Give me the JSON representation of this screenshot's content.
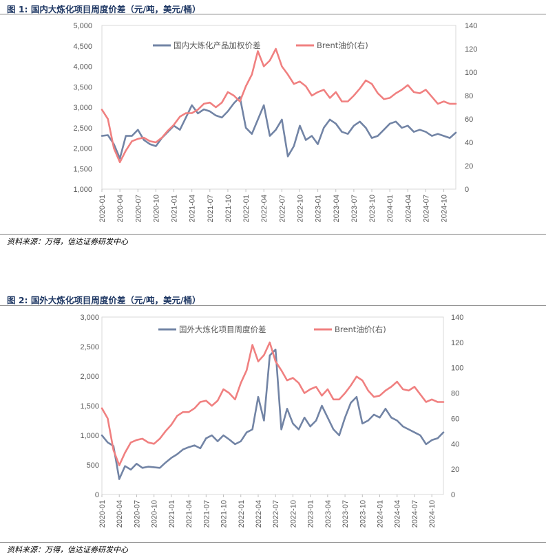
{
  "colors": {
    "domestic": "#7284a5",
    "foreign": "#7284a5",
    "brent": "#f08080",
    "title": "#1f3864"
  },
  "charts": [
    {
      "figure_title": "图 1:  国内大炼化项目周度价差（元/吨，美元/桶）",
      "source": "资料来源：万得，信达证券研发中心",
      "left_ticks": [
        "1,000",
        "1,500",
        "2,000",
        "2,500",
        "3,000",
        "3,500",
        "4,000",
        "4,500",
        "5,000"
      ],
      "right_ticks": [
        "0",
        "20",
        "40",
        "60",
        "80",
        "100",
        "120",
        "140"
      ],
      "x_ticks": [
        "2020-01",
        "2020-04",
        "2020-07",
        "2020-10",
        "2021-01",
        "2021-04",
        "2021-07",
        "2021-10",
        "2022-01",
        "2022-04",
        "2022-07",
        "2022-10",
        "2023-01",
        "2023-04",
        "2023-07",
        "2023-10",
        "2024-01",
        "2024-04",
        "2024-07",
        "2024-10"
      ],
      "legend": [
        "国内大炼化产品加权价差",
        "Brent油价(右)"
      ]
    },
    {
      "figure_title": "图 2:  国外大炼化项目周度价差（元/吨，美元/桶）",
      "source": "资料来源：万得，信达证券研发中心",
      "left_ticks": [
        "0",
        "500",
        "1,000",
        "1,500",
        "2,000",
        "2,500",
        "3,000"
      ],
      "right_ticks": [
        "0",
        "20",
        "40",
        "60",
        "80",
        "100",
        "120",
        "140"
      ],
      "x_ticks": [
        "2020-01",
        "2020-04",
        "2020-07",
        "2020-10",
        "2021-01",
        "2021-04",
        "2021-07",
        "2021-10",
        "2022-01",
        "2022-04",
        "2022-07",
        "2022-10",
        "2023-01",
        "2023-04",
        "2023-07",
        "2023-10",
        "2024-01",
        "2024-04",
        "2024-07",
        "2024-10"
      ],
      "legend": [
        "国外大炼化项目周度价差",
        "Brent油价(右)"
      ]
    }
  ],
  "chart_data": [
    {
      "type": "line",
      "title": "国内大炼化项目周度价差（元/吨，美元/桶）",
      "xlabel": "",
      "ylabel": "",
      "ylabel_right": "",
      "ylim": [
        1000,
        5000
      ],
      "ylim_right": [
        0,
        140
      ],
      "x_range": [
        "2020-01",
        "2024-12"
      ],
      "legend_position": "top-center",
      "series": [
        {
          "name": "国内大炼化产品加权价差",
          "axis": "left",
          "x": [
            "2020-01",
            "2020-02",
            "2020-03",
            "2020-04",
            "2020-05",
            "2020-06",
            "2020-07",
            "2020-08",
            "2020-09",
            "2020-10",
            "2020-11",
            "2020-12",
            "2021-01",
            "2021-02",
            "2021-03",
            "2021-04",
            "2021-05",
            "2021-06",
            "2021-07",
            "2021-08",
            "2021-09",
            "2021-10",
            "2021-11",
            "2021-12",
            "2022-01",
            "2022-02",
            "2022-03",
            "2022-04",
            "2022-05",
            "2022-06",
            "2022-07",
            "2022-08",
            "2022-09",
            "2022-10",
            "2022-11",
            "2022-12",
            "2023-01",
            "2023-02",
            "2023-03",
            "2023-04",
            "2023-05",
            "2023-06",
            "2023-07",
            "2023-08",
            "2023-09",
            "2023-10",
            "2023-11",
            "2023-12",
            "2024-01",
            "2024-02",
            "2024-03",
            "2024-04",
            "2024-05",
            "2024-06",
            "2024-07",
            "2024-08",
            "2024-09",
            "2024-10",
            "2024-11",
            "2024-12"
          ],
          "values": [
            2300,
            2320,
            2100,
            1750,
            2300,
            2300,
            2450,
            2200,
            2100,
            2050,
            2250,
            2400,
            2550,
            2450,
            2750,
            3050,
            2850,
            2950,
            2900,
            2800,
            2750,
            2900,
            3100,
            3250,
            2500,
            2350,
            2700,
            3050,
            2300,
            2450,
            2700,
            1800,
            2050,
            2550,
            2200,
            2300,
            2100,
            2500,
            2700,
            2600,
            2400,
            2350,
            2550,
            2650,
            2500,
            2250,
            2300,
            2450,
            2600,
            2650,
            2500,
            2550,
            2400,
            2450,
            2400,
            2300,
            2350,
            2300,
            2250,
            2380
          ]
        },
        {
          "name": "Brent油价(右)",
          "axis": "right",
          "x": [
            "2020-01",
            "2020-02",
            "2020-03",
            "2020-04",
            "2020-05",
            "2020-06",
            "2020-07",
            "2020-08",
            "2020-09",
            "2020-10",
            "2020-11",
            "2020-12",
            "2021-01",
            "2021-02",
            "2021-03",
            "2021-04",
            "2021-05",
            "2021-06",
            "2021-07",
            "2021-08",
            "2021-09",
            "2021-10",
            "2021-11",
            "2021-12",
            "2022-01",
            "2022-02",
            "2022-03",
            "2022-04",
            "2022-05",
            "2022-06",
            "2022-07",
            "2022-08",
            "2022-09",
            "2022-10",
            "2022-11",
            "2022-12",
            "2023-01",
            "2023-02",
            "2023-03",
            "2023-04",
            "2023-05",
            "2023-06",
            "2023-07",
            "2023-08",
            "2023-09",
            "2023-10",
            "2023-11",
            "2023-12",
            "2024-01",
            "2024-02",
            "2024-03",
            "2024-04",
            "2024-05",
            "2024-06",
            "2024-07",
            "2024-08",
            "2024-09",
            "2024-10",
            "2024-11",
            "2024-12"
          ],
          "values": [
            68,
            60,
            35,
            23,
            33,
            41,
            43,
            44,
            41,
            40,
            44,
            50,
            55,
            62,
            65,
            65,
            68,
            73,
            74,
            70,
            74,
            83,
            80,
            75,
            88,
            98,
            118,
            105,
            110,
            120,
            105,
            98,
            90,
            92,
            88,
            80,
            83,
            85,
            78,
            83,
            75,
            75,
            80,
            86,
            93,
            90,
            82,
            77,
            78,
            82,
            85,
            89,
            83,
            82,
            85,
            79,
            73,
            75,
            73,
            73
          ]
        }
      ]
    },
    {
      "type": "line",
      "title": "国外大炼化项目周度价差（元/吨，美元/桶）",
      "xlabel": "",
      "ylabel": "",
      "ylabel_right": "",
      "ylim": [
        0,
        3000
      ],
      "ylim_right": [
        0,
        140
      ],
      "x_range": [
        "2020-01",
        "2024-12"
      ],
      "legend_position": "top-center",
      "series": [
        {
          "name": "国外大炼化项目周度价差",
          "axis": "left",
          "x": [
            "2020-01",
            "2020-02",
            "2020-03",
            "2020-04",
            "2020-05",
            "2020-06",
            "2020-07",
            "2020-08",
            "2020-09",
            "2020-10",
            "2020-11",
            "2020-12",
            "2021-01",
            "2021-02",
            "2021-03",
            "2021-04",
            "2021-05",
            "2021-06",
            "2021-07",
            "2021-08",
            "2021-09",
            "2021-10",
            "2021-11",
            "2021-12",
            "2022-01",
            "2022-02",
            "2022-03",
            "2022-04",
            "2022-05",
            "2022-06",
            "2022-07",
            "2022-08",
            "2022-09",
            "2022-10",
            "2022-11",
            "2022-12",
            "2023-01",
            "2023-02",
            "2023-03",
            "2023-04",
            "2023-05",
            "2023-06",
            "2023-07",
            "2023-08",
            "2023-09",
            "2023-10",
            "2023-11",
            "2023-12",
            "2024-01",
            "2024-02",
            "2024-03",
            "2024-04",
            "2024-05",
            "2024-06",
            "2024-07",
            "2024-08",
            "2024-09",
            "2024-10",
            "2024-11",
            "2024-12"
          ],
          "values": [
            1000,
            880,
            820,
            260,
            480,
            420,
            520,
            450,
            470,
            460,
            450,
            540,
            620,
            680,
            760,
            800,
            830,
            780,
            950,
            1000,
            900,
            1000,
            930,
            850,
            900,
            1050,
            1100,
            1650,
            1250,
            2350,
            2450,
            1100,
            1450,
            1200,
            1100,
            1300,
            1150,
            1250,
            1500,
            1300,
            1100,
            1000,
            1300,
            1550,
            1650,
            1200,
            1250,
            1350,
            1300,
            1450,
            1300,
            1250,
            1150,
            1100,
            1050,
            1000,
            850,
            920,
            950,
            1050
          ]
        },
        {
          "name": "Brent油价(右)",
          "axis": "right",
          "x": [
            "2020-01",
            "2020-02",
            "2020-03",
            "2020-04",
            "2020-05",
            "2020-06",
            "2020-07",
            "2020-08",
            "2020-09",
            "2020-10",
            "2020-11",
            "2020-12",
            "2021-01",
            "2021-02",
            "2021-03",
            "2021-04",
            "2021-05",
            "2021-06",
            "2021-07",
            "2021-08",
            "2021-09",
            "2021-10",
            "2021-11",
            "2021-12",
            "2022-01",
            "2022-02",
            "2022-03",
            "2022-04",
            "2022-05",
            "2022-06",
            "2022-07",
            "2022-08",
            "2022-09",
            "2022-10",
            "2022-11",
            "2022-12",
            "2023-01",
            "2023-02",
            "2023-03",
            "2023-04",
            "2023-05",
            "2023-06",
            "2023-07",
            "2023-08",
            "2023-09",
            "2023-10",
            "2023-11",
            "2023-12",
            "2024-01",
            "2024-02",
            "2024-03",
            "2024-04",
            "2024-05",
            "2024-06",
            "2024-07",
            "2024-08",
            "2024-09",
            "2024-10",
            "2024-11",
            "2024-12"
          ],
          "values": [
            68,
            60,
            35,
            23,
            33,
            41,
            43,
            44,
            41,
            40,
            44,
            50,
            55,
            62,
            65,
            65,
            68,
            73,
            74,
            70,
            74,
            83,
            80,
            75,
            88,
            98,
            118,
            105,
            110,
            120,
            105,
            98,
            90,
            92,
            88,
            80,
            83,
            85,
            78,
            83,
            75,
            75,
            80,
            86,
            93,
            90,
            82,
            77,
            78,
            82,
            85,
            89,
            83,
            82,
            85,
            79,
            73,
            75,
            73,
            73
          ]
        }
      ]
    }
  ]
}
